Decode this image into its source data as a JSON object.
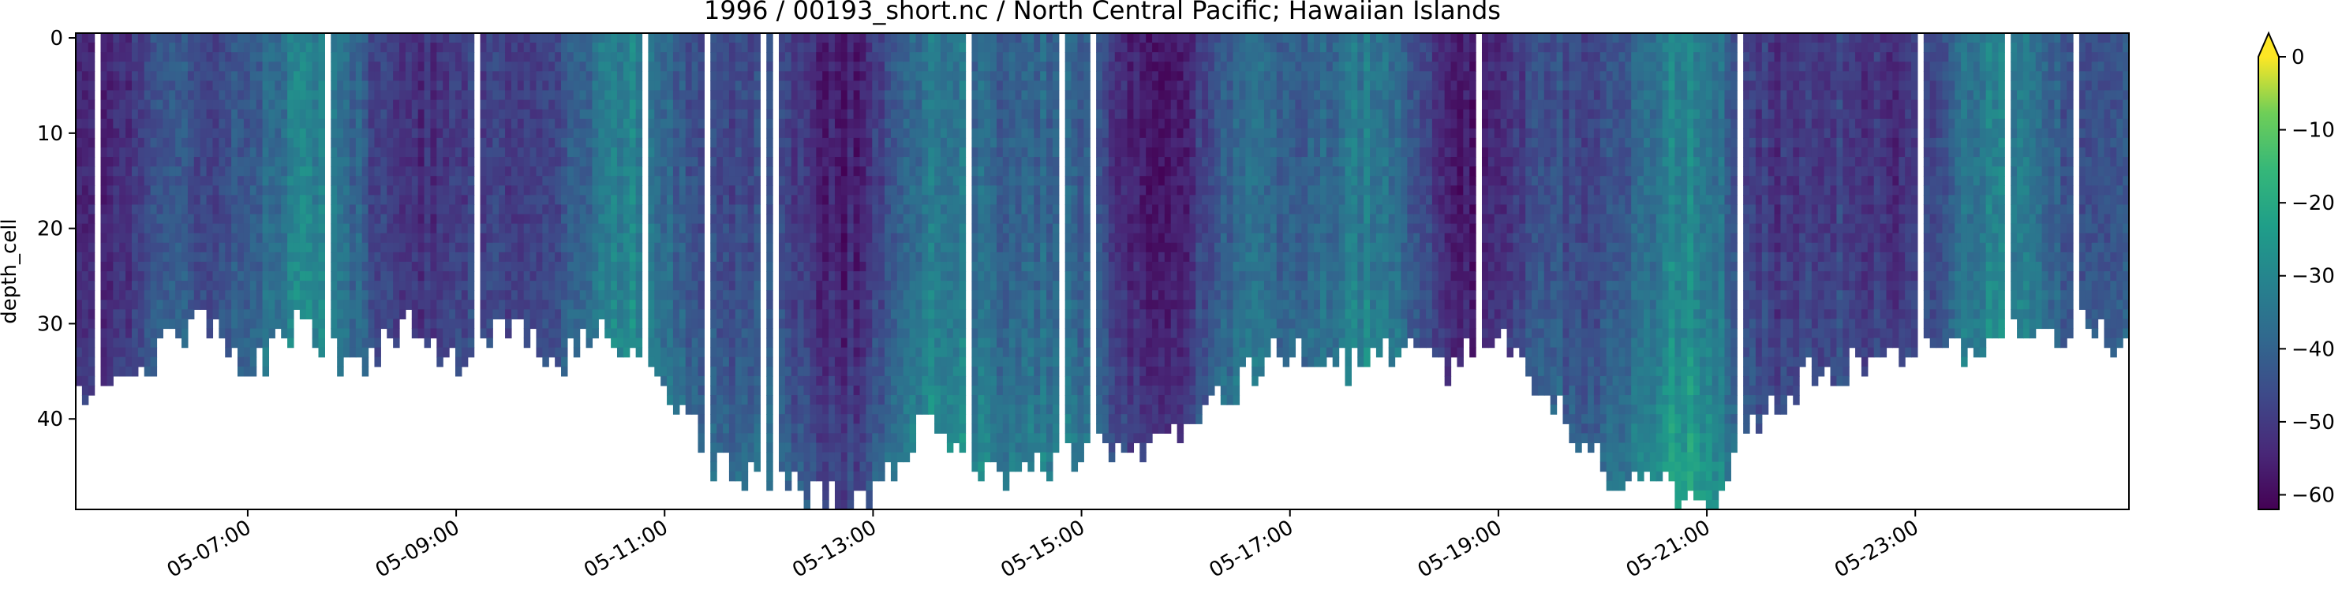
{
  "chart_data": {
    "type": "heatmap",
    "title": "1996 / 00193_short.nc / North Central Pacific; Hawaiian Islands",
    "xlabel": "",
    "ylabel": "depth_cell",
    "x_tick_labels": [
      "05-07:00",
      "05-09:00",
      "05-11:00",
      "05-13:00",
      "05-15:00",
      "05-17:00",
      "05-19:00",
      "05-21:00",
      "05-23:00"
    ],
    "x_tick_hours": [
      7,
      9,
      11,
      13,
      15,
      17,
      19,
      21,
      23
    ],
    "xlim_hours": [
      5.35,
      25.05
    ],
    "y_ticks": [
      0,
      10,
      20,
      30,
      40
    ],
    "ylim": [
      49.5,
      -0.5
    ],
    "y_inverted": true,
    "colorbar": {
      "colormap": "viridis",
      "ticks": [
        0,
        -10,
        -20,
        -30,
        -40,
        -50,
        -60
      ],
      "range": [
        -62,
        0
      ],
      "extend": "max"
    },
    "profile_depth_hours": [
      5.4,
      6.0,
      6.5,
      7.0,
      7.5,
      8.0,
      8.5,
      9.0,
      9.5,
      10.0,
      10.5,
      11.0,
      11.5,
      12.0,
      12.5,
      13.0,
      13.5,
      14.0,
      14.5,
      15.0,
      15.5,
      16.0,
      16.5,
      17.0,
      17.5,
      18.0,
      18.5,
      19.0,
      19.5,
      20.0,
      20.5,
      21.0,
      21.5,
      22.0,
      22.5,
      23.0,
      23.5,
      24.0,
      24.5,
      25.0
    ],
    "profile_depth_cells": [
      38,
      35,
      30,
      36,
      30,
      36,
      30,
      35,
      31,
      34,
      31,
      38,
      45,
      47,
      49,
      49,
      40,
      47,
      46,
      44,
      43,
      42,
      37,
      33,
      35,
      33,
      35,
      32,
      38,
      46,
      47,
      49,
      41,
      36,
      35,
      34,
      33,
      32,
      31,
      32
    ]
  }
}
